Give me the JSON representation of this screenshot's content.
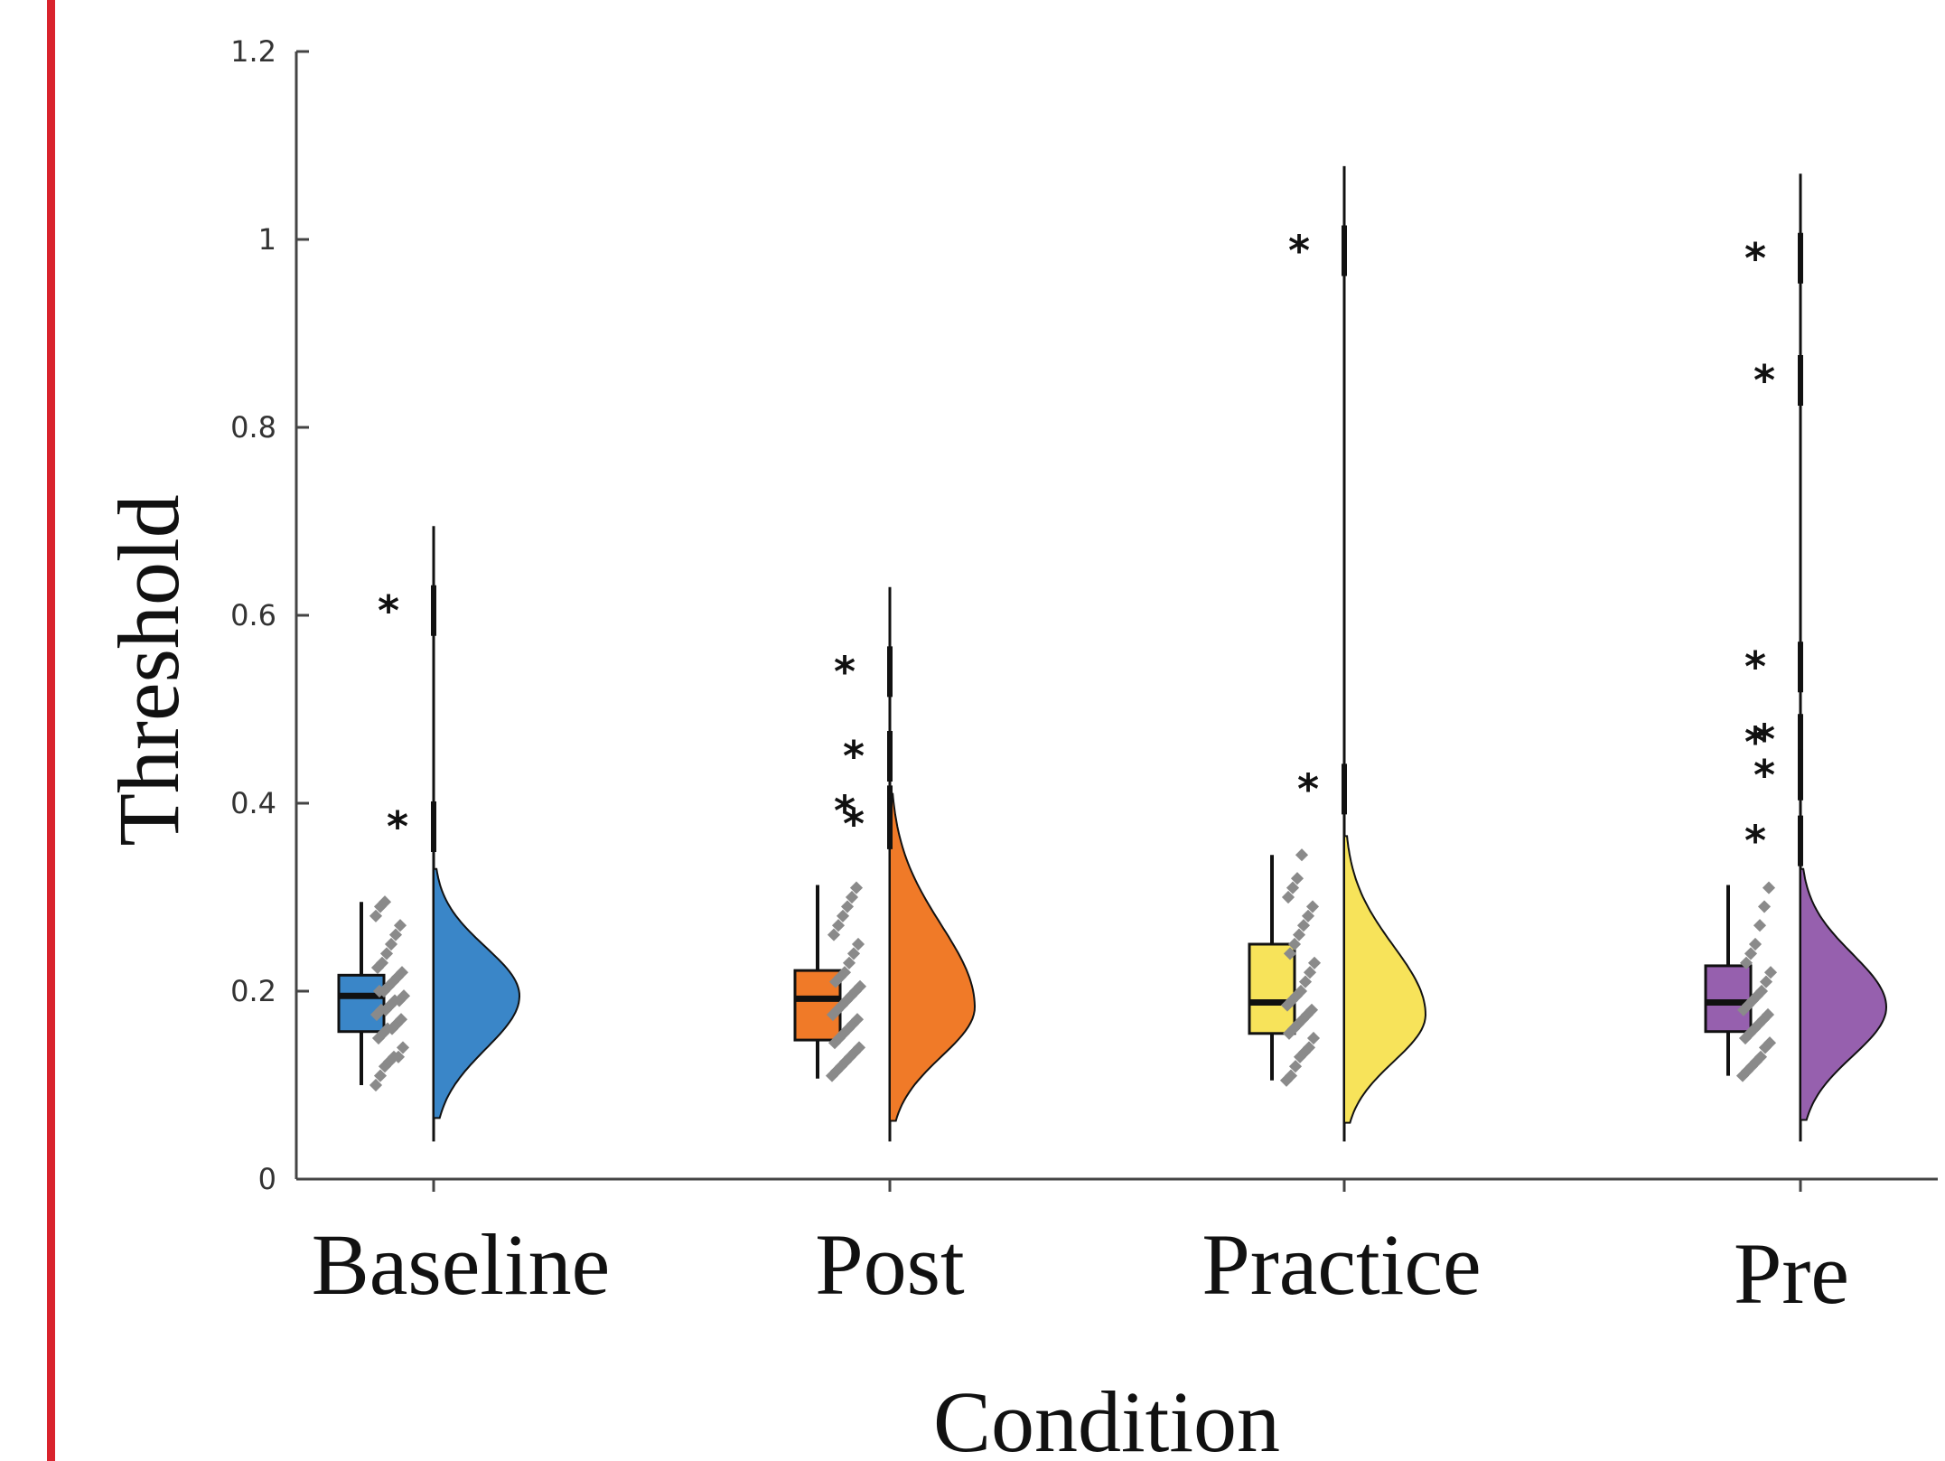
{
  "chart_data": {
    "type": "raincloud",
    "title": "",
    "xlabel": "Condition",
    "ylabel": "Threshold",
    "ylim": [
      0,
      1.2
    ],
    "yticks": [
      0,
      0.2,
      0.4,
      0.6,
      0.8,
      1,
      1.2
    ],
    "ytick_labels": [
      "0",
      "0.2",
      "0.4",
      "0.6",
      "0.8",
      "1",
      "1.2"
    ],
    "grid": false,
    "legend": "none",
    "categories": [
      "Baseline",
      "Post",
      "Practice",
      "Pre"
    ],
    "series": [
      {
        "category": "Baseline",
        "color": "#3a86c8",
        "box": {
          "whisker_low": 0.1,
          "q1": 0.157,
          "median": 0.195,
          "q3": 0.217,
          "whisker_high": 0.295
        },
        "density": {
          "min": 0.065,
          "max": 0.33,
          "mode": 0.195,
          "peak": 0.095
        },
        "outliers": [
          0.605,
          0.375
        ],
        "points": [
          0.1,
          0.11,
          0.12,
          0.125,
          0.13,
          0.13,
          0.14,
          0.15,
          0.155,
          0.16,
          0.16,
          0.165,
          0.17,
          0.175,
          0.18,
          0.18,
          0.185,
          0.19,
          0.19,
          0.195,
          0.2,
          0.2,
          0.205,
          0.21,
          0.215,
          0.22,
          0.225,
          0.23,
          0.24,
          0.25,
          0.26,
          0.27,
          0.28,
          0.29,
          0.295
        ]
      },
      {
        "category": "Post",
        "color": "#f07a28",
        "box": {
          "whisker_low": 0.107,
          "q1": 0.148,
          "median": 0.192,
          "q3": 0.222,
          "whisker_high": 0.313
        },
        "density": {
          "min": 0.062,
          "max": 0.41,
          "mode": 0.183,
          "peak": 0.094
        },
        "outliers": [
          0.54,
          0.45,
          0.392,
          0.378
        ],
        "points": [
          0.11,
          0.115,
          0.12,
          0.125,
          0.13,
          0.135,
          0.14,
          0.145,
          0.15,
          0.155,
          0.16,
          0.165,
          0.17,
          0.175,
          0.18,
          0.185,
          0.19,
          0.195,
          0.2,
          0.205,
          0.21,
          0.215,
          0.22,
          0.23,
          0.24,
          0.25,
          0.26,
          0.27,
          0.28,
          0.29,
          0.3,
          0.31
        ]
      },
      {
        "category": "Practice",
        "color": "#f7e35a",
        "box": {
          "whisker_low": 0.105,
          "q1": 0.155,
          "median": 0.188,
          "q3": 0.25,
          "whisker_high": 0.345
        },
        "density": {
          "min": 0.06,
          "max": 0.365,
          "mode": 0.175,
          "peak": 0.09
        },
        "outliers": [
          0.988,
          0.415
        ],
        "points": [
          0.105,
          0.11,
          0.12,
          0.13,
          0.135,
          0.14,
          0.15,
          0.155,
          0.16,
          0.165,
          0.17,
          0.175,
          0.18,
          0.185,
          0.19,
          0.195,
          0.2,
          0.21,
          0.22,
          0.23,
          0.24,
          0.25,
          0.26,
          0.27,
          0.28,
          0.29,
          0.3,
          0.31,
          0.32,
          0.345
        ]
      },
      {
        "category": "Pre",
        "color": "#9660ae",
        "box": {
          "whisker_low": 0.11,
          "q1": 0.157,
          "median": 0.188,
          "q3": 0.227,
          "whisker_high": 0.313
        },
        "density": {
          "min": 0.063,
          "max": 0.33,
          "mode": 0.183,
          "peak": 0.095
        },
        "outliers": [
          0.98,
          0.85,
          0.545,
          0.468,
          0.465,
          0.43,
          0.36
        ],
        "points": [
          0.11,
          0.115,
          0.12,
          0.125,
          0.13,
          0.14,
          0.145,
          0.15,
          0.155,
          0.16,
          0.165,
          0.17,
          0.175,
          0.18,
          0.185,
          0.19,
          0.195,
          0.2,
          0.21,
          0.22,
          0.23,
          0.24,
          0.25,
          0.27,
          0.29,
          0.31
        ]
      }
    ]
  }
}
